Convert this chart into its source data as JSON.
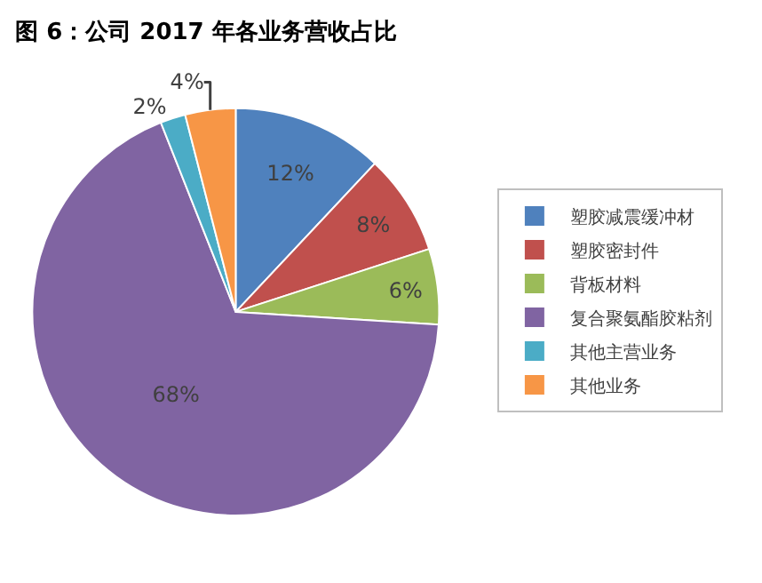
{
  "chart_data": {
    "type": "pie",
    "title": "图 6：公司 2017 年各业务营收占比",
    "categories": [
      "塑胶减震缓冲材",
      "塑胶密封件",
      "背板材料",
      "复合聚氨酯胶粘剂",
      "其他主营业务",
      "其他业务"
    ],
    "values": [
      12,
      8,
      6,
      68,
      2,
      4
    ],
    "value_labels": [
      "12%",
      "8%",
      "6%",
      "68%",
      "2%",
      "4%"
    ],
    "colors": [
      "#4f81bd",
      "#c0504d",
      "#9bbb59",
      "#8064a2",
      "#4bacc6",
      "#f79646"
    ],
    "legend": "right"
  }
}
